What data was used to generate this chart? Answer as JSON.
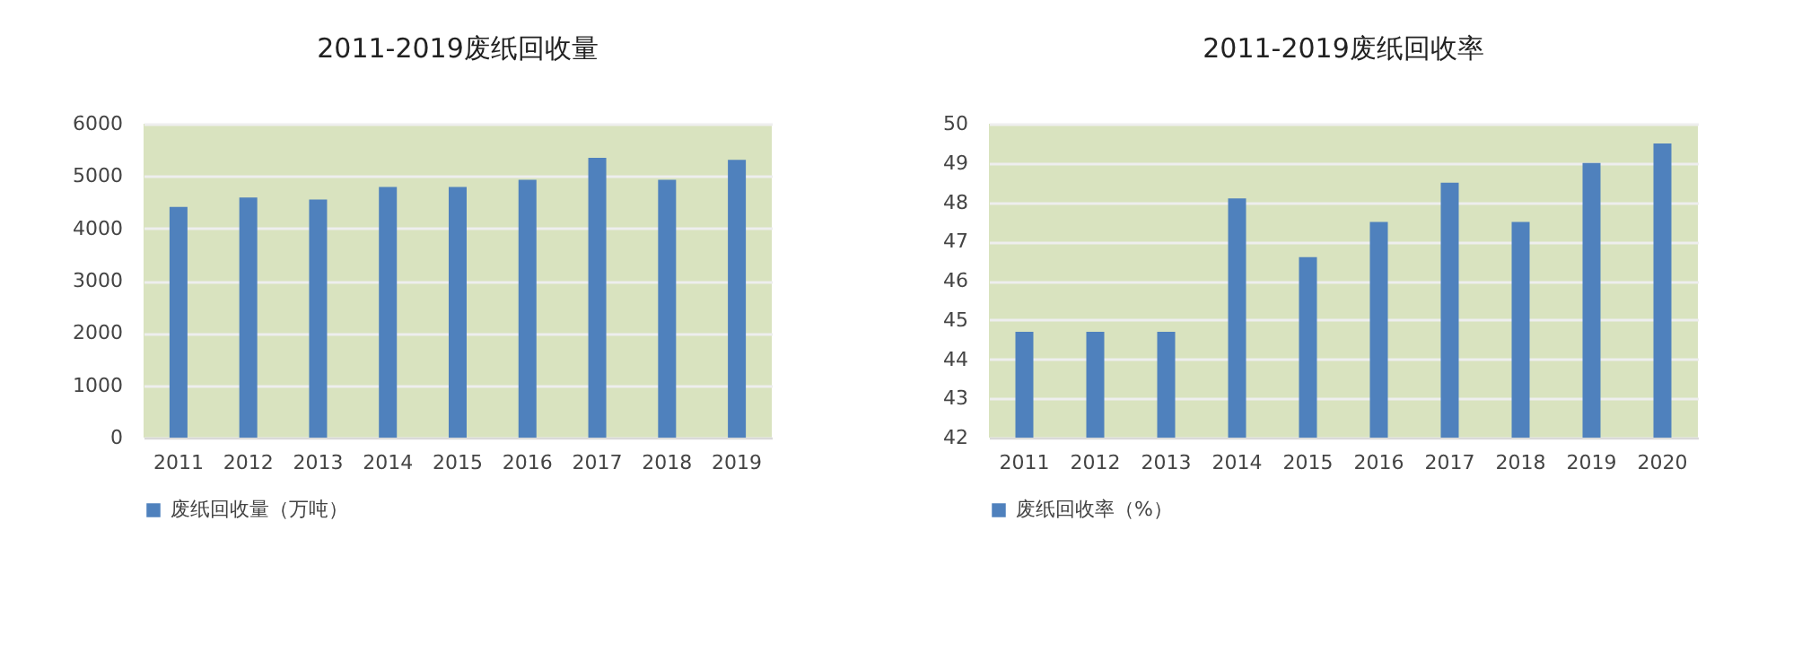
{
  "chart_data": [
    {
      "type": "bar",
      "title": "2011-2019废纸回收量",
      "categories": [
        "2011",
        "2012",
        "2013",
        "2014",
        "2015",
        "2016",
        "2017",
        "2018",
        "2019"
      ],
      "series": [
        {
          "name": "废纸回收量（万吨）",
          "color": "#4f81bd",
          "values": [
            4410,
            4590,
            4550,
            4790,
            4790,
            4930,
            5350,
            4930,
            5310
          ]
        }
      ],
      "ylim": [
        0,
        6000
      ],
      "yticks": [
        0,
        1000,
        2000,
        3000,
        4000,
        5000,
        6000
      ],
      "grid": "y",
      "legend": "bottom"
    },
    {
      "type": "bar",
      "title": "2011-2019废纸回收率",
      "categories": [
        "2011",
        "2012",
        "2013",
        "2014",
        "2015",
        "2016",
        "2017",
        "2018",
        "2019",
        "2020"
      ],
      "series": [
        {
          "name": "废纸回收率（%）",
          "color": "#4f81bd",
          "values": [
            44.7,
            44.7,
            44.7,
            48.1,
            46.6,
            47.5,
            48.5,
            47.5,
            49.0,
            49.5
          ]
        }
      ],
      "ylim": [
        42,
        50
      ],
      "yticks": [
        42,
        43,
        44,
        45,
        46,
        47,
        48,
        49,
        50
      ],
      "grid": "y",
      "legend": "bottom"
    }
  ]
}
